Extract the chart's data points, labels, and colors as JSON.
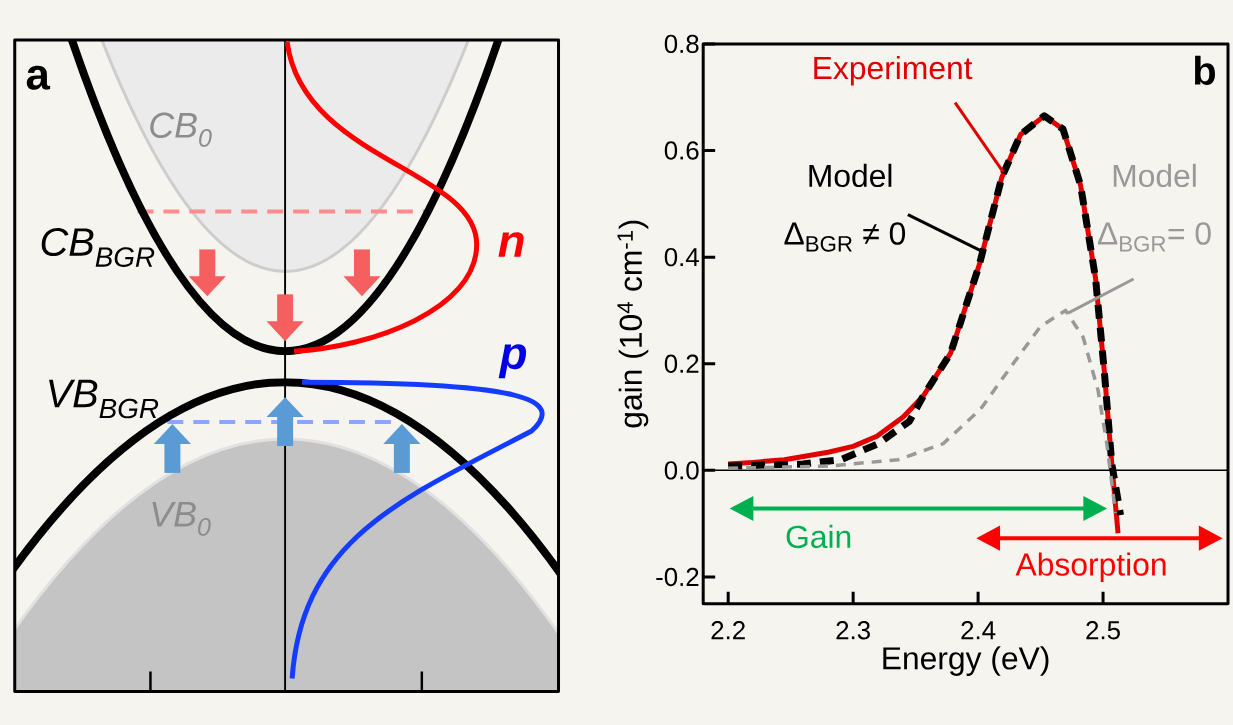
{
  "chart_data": [
    {
      "type": "other",
      "annotations": [
        "a",
        "CB$_{0}$",
        "CB$_{BGR}$",
        "VB$_{BGR}$",
        "VB$_{0}$",
        "n",
        "p"
      ]
    },
    {
      "type": "line",
      "xlabel": "Energy (eV)",
      "ylabel": "gain (10$^{4}$ cm$^{-1}$)",
      "xlim": [
        2.18,
        2.6
      ],
      "ylim": [
        -0.25,
        0.8
      ],
      "xticks": [
        2.2,
        2.3,
        2.4,
        2.5
      ],
      "yticks": [
        {
          "value": -0.2,
          "label": "-0.2"
        },
        {
          "value": 0,
          "label": "0.0"
        },
        {
          "value": 0.2,
          "label": "0.2"
        },
        {
          "value": 0.4,
          "label": "0.4"
        },
        {
          "value": 0.6,
          "label": "0.6"
        },
        {
          "value": 0.8,
          "label": "0.8"
        }
      ],
      "series": [
        {
          "color": "#e00000",
          "line_style": "solid",
          "x": [
            2.2,
            2.22,
            2.245,
            2.28,
            2.3,
            2.319,
            2.34,
            2.356,
            2.378,
            2.401,
            2.419,
            2.434,
            2.453,
            2.468,
            2.482,
            2.494,
            2.501,
            2.507,
            2.512
          ],
          "values": [
            0.012,
            0.015,
            0.02,
            0.034,
            0.045,
            0.064,
            0.1,
            0.139,
            0.22,
            0.386,
            0.55,
            0.63,
            0.665,
            0.64,
            0.535,
            0.36,
            0.186,
            0.012,
            -0.118
          ]
        },
        {
          "color": "#000000",
          "line_style": "dashed",
          "x": [
            2.2,
            2.23,
            2.26,
            2.29,
            2.32,
            2.345,
            2.356,
            2.378,
            2.401,
            2.419,
            2.434,
            2.453,
            2.468,
            2.482,
            2.494,
            2.501,
            2.507,
            2.514
          ],
          "values": [
            0.008,
            0.01,
            0.012,
            0.02,
            0.05,
            0.092,
            0.139,
            0.22,
            0.386,
            0.55,
            0.63,
            0.665,
            0.64,
            0.535,
            0.36,
            0.186,
            0.012,
            -0.084
          ]
        },
        {
          "color": "#999999",
          "line_style": "dashed",
          "x": [
            2.2,
            2.28,
            2.336,
            2.372,
            2.402,
            2.428,
            2.45,
            2.47,
            2.484,
            2.496,
            2.503,
            2.51
          ],
          "values": [
            0.004,
            0.008,
            0.02,
            0.05,
            0.115,
            0.2,
            0.27,
            0.3,
            0.25,
            0.15,
            0.05,
            -0.08
          ]
        }
      ],
      "ref_lines": [
        {
          "axis": "y",
          "value": 0,
          "color": "#000000"
        }
      ],
      "annotations": [
        {
          "text": "Experiment",
          "x": 2.42,
          "y": 0.56
        },
        "Model",
        {
          "text": "Δ$_{BGR}$ ≠ 0",
          "x": 2.404,
          "y": 0.41
        },
        "Model",
        {
          "text": "Δ$_{BGR}$= 0",
          "x": 2.472,
          "y": 0.295
        },
        "Gain",
        "Absorption",
        "b"
      ]
    }
  ]
}
